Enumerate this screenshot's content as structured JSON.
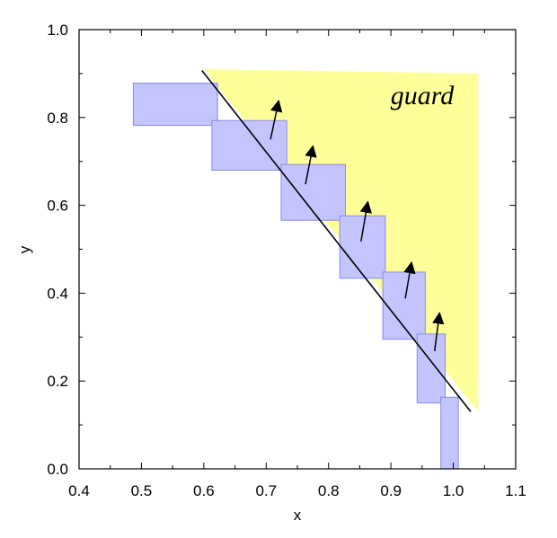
{
  "chart_data": {
    "type": "area",
    "xlabel": "x",
    "ylabel": "y",
    "xlim": [
      0.4,
      1.1
    ],
    "ylim": [
      0.0,
      1.0
    ],
    "x_ticks": [
      "0.4",
      "0.5",
      "0.6",
      "0.7",
      "0.8",
      "0.9",
      "1.0",
      "1.1"
    ],
    "y_ticks": [
      "0.0",
      "0.2",
      "0.4",
      "0.6",
      "0.8",
      "1.0"
    ],
    "x_tick_values": [
      0.4,
      0.5,
      0.6,
      0.7,
      0.8,
      0.9,
      1.0,
      1.1
    ],
    "y_tick_values": [
      0.0,
      0.2,
      0.4,
      0.6,
      0.8,
      1.0
    ],
    "grid": false,
    "colors": {
      "guard_region": "#ffff99",
      "boxes_fill": "#c4c4ff",
      "boxes_stroke": "#8a8ae0",
      "line": "#000000"
    },
    "guard_region": {
      "label": "guard",
      "polygon": [
        [
          0.6,
          0.91
        ],
        [
          1.04,
          0.9
        ],
        [
          1.04,
          0.13
        ],
        [
          0.6,
          0.91
        ]
      ]
    },
    "boxes": [
      {
        "x0": 0.487,
        "x1": 0.622,
        "y0": 0.782,
        "y1": 0.878
      },
      {
        "x0": 0.613,
        "x1": 0.733,
        "y0": 0.68,
        "y1": 0.793
      },
      {
        "x0": 0.724,
        "x1": 0.827,
        "y0": 0.566,
        "y1": 0.693
      },
      {
        "x0": 0.818,
        "x1": 0.891,
        "y0": 0.434,
        "y1": 0.576
      },
      {
        "x0": 0.887,
        "x1": 0.955,
        "y0": 0.295,
        "y1": 0.448
      },
      {
        "x0": 0.942,
        "x1": 0.987,
        "y0": 0.15,
        "y1": 0.307
      },
      {
        "x0": 0.98,
        "x1": 1.008,
        "y0": 0.0,
        "y1": 0.163
      }
    ],
    "line": {
      "x": [
        0.597,
        1.028
      ],
      "y": [
        0.907,
        0.13
      ]
    },
    "arrows": [
      {
        "from": [
          0.707,
          0.75
        ],
        "to": [
          0.72,
          0.838
        ]
      },
      {
        "from": [
          0.763,
          0.648
        ],
        "to": [
          0.775,
          0.735
        ]
      },
      {
        "from": [
          0.852,
          0.518
        ],
        "to": [
          0.863,
          0.608
        ]
      },
      {
        "from": [
          0.923,
          0.388
        ],
        "to": [
          0.933,
          0.47
        ]
      },
      {
        "from": [
          0.97,
          0.268
        ],
        "to": [
          0.978,
          0.355
        ]
      }
    ]
  }
}
